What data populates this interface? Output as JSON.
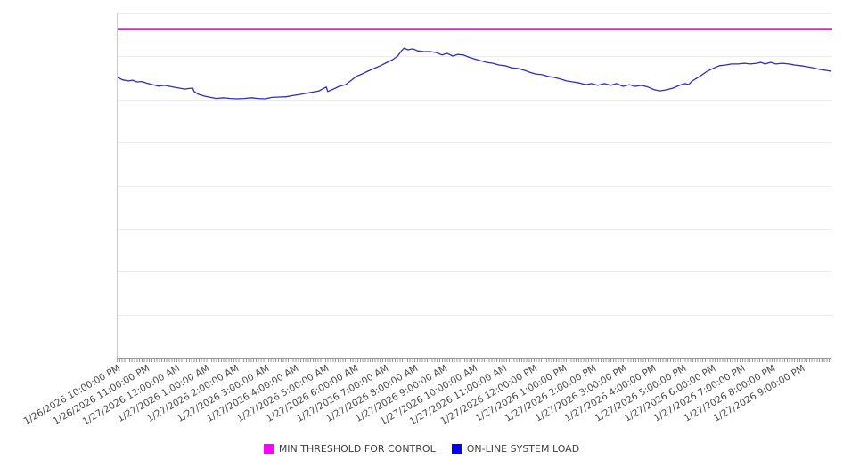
{
  "page": {
    "background": "#ffffff"
  },
  "legend": {
    "items": [
      {
        "label": "MIN THRESHOLD FOR CONTROL",
        "swatch": "#FF00FF"
      },
      {
        "label": "ON-LINE SYSTEM LOAD",
        "swatch": "#0000FF"
      }
    ]
  },
  "chart_data": {
    "type": "line",
    "title": "",
    "xlabel": "",
    "ylabel": "",
    "x_labels": [
      "1/26/2026 10:00:00 PM",
      "1/26/2026 11:00:00 PM",
      "1/27/2026 12:00:00 AM",
      "1/27/2026 1:00:00 AM",
      "1/27/2026 2:00:00 AM",
      "1/27/2026 3:00:00 AM",
      "1/27/2026 4:00:00 AM",
      "1/27/2026 5:00:00 AM",
      "1/27/2026 6:00:00 AM",
      "1/27/2026 7:00:00 AM",
      "1/27/2026 8:00:00 AM",
      "1/27/2026 9:00:00 AM",
      "1/27/2026 10:00:00 AM",
      "1/27/2026 11:00:00 AM",
      "1/27/2026 12:00:00 PM",
      "1/27/2026 1:00:00 PM",
      "1/27/2026 2:00:00 PM",
      "1/27/2026 3:00:00 PM",
      "1/27/2026 4:00:00 PM",
      "1/27/2026 5:00:00 PM",
      "1/27/2026 6:00:00 PM",
      "1/27/2026 7:00:00 PM",
      "1/27/2026 8:00:00 PM",
      "1/27/2026 9:00:00 PM"
    ],
    "x_range_hours": 24,
    "x_minor_tick_interval_minutes": 5,
    "ylim": [
      0,
      100
    ],
    "y_gridline_count": 9,
    "y_tick_labels": [],
    "grid_on": true,
    "grid_color": "#ececec",
    "axis_color": "#999999",
    "plot_border_color": "#cccccc",
    "x_label_color": "#4a4a4a",
    "legend_position": "bottom-center",
    "series": [
      {
        "name": "MIN THRESHOLD FOR CONTROL",
        "type": "horizontal-line",
        "color": "#CC2FCC",
        "value": 95.3
      },
      {
        "name": "ON-LINE SYSTEM LOAD",
        "type": "line",
        "color": "#2D2DBE",
        "points": [
          [
            0,
            81.4
          ],
          [
            0.7,
            80.7
          ],
          [
            1.5,
            80.4
          ],
          [
            2.1,
            80.6
          ],
          [
            2.7,
            80.1
          ],
          [
            3.4,
            80.2
          ],
          [
            4,
            79.8
          ],
          [
            4.9,
            79.3
          ],
          [
            5.7,
            78.9
          ],
          [
            6.6,
            79.1
          ],
          [
            7.5,
            78.7
          ],
          [
            8.4,
            78.4
          ],
          [
            9.4,
            78
          ],
          [
            10,
            78.2
          ],
          [
            10.5,
            78.3
          ],
          [
            10.7,
            77.3
          ],
          [
            11.3,
            76.5
          ],
          [
            12.1,
            76
          ],
          [
            13,
            75.6
          ],
          [
            13.8,
            75.3
          ],
          [
            14.8,
            75.5
          ],
          [
            15.8,
            75.3
          ],
          [
            16.7,
            75.2
          ],
          [
            17.7,
            75.3
          ],
          [
            18.7,
            75.5
          ],
          [
            19.6,
            75.3
          ],
          [
            20.6,
            75.2
          ],
          [
            21.6,
            75.6
          ],
          [
            22.6,
            75.7
          ],
          [
            23.6,
            75.8
          ],
          [
            24.4,
            76.1
          ],
          [
            25.7,
            76.5
          ],
          [
            26.9,
            77
          ],
          [
            28.2,
            77.5
          ],
          [
            28.9,
            78.3
          ],
          [
            29.2,
            78.6
          ],
          [
            29.4,
            77.3
          ],
          [
            30.2,
            78
          ],
          [
            31,
            78.8
          ],
          [
            31.9,
            79.3
          ],
          [
            32.7,
            80.6
          ],
          [
            33.4,
            81.7
          ],
          [
            34.2,
            82.4
          ],
          [
            35,
            83.2
          ],
          [
            35.9,
            84
          ],
          [
            36.8,
            84.8
          ],
          [
            37.7,
            85.8
          ],
          [
            38.5,
            86.6
          ],
          [
            39.2,
            87.6
          ],
          [
            39.7,
            89.1
          ],
          [
            40.1,
            89.9
          ],
          [
            40.6,
            89.4
          ],
          [
            41.3,
            89.7
          ],
          [
            42,
            89.1
          ],
          [
            42.9,
            88.9
          ],
          [
            43.8,
            88.9
          ],
          [
            44.6,
            88.6
          ],
          [
            45.4,
            87.9
          ],
          [
            46.1,
            88.4
          ],
          [
            46.9,
            87.6
          ],
          [
            47.6,
            88.1
          ],
          [
            48.4,
            87.9
          ],
          [
            49.1,
            87.3
          ],
          [
            49.9,
            86.8
          ],
          [
            50.7,
            86.3
          ],
          [
            51.6,
            85.8
          ],
          [
            52.5,
            85.5
          ],
          [
            53.4,
            85
          ],
          [
            54.2,
            84.8
          ],
          [
            55.1,
            84.2
          ],
          [
            56,
            84
          ],
          [
            56.9,
            83.5
          ],
          [
            57.7,
            82.9
          ],
          [
            58.5,
            82.4
          ],
          [
            59.4,
            82.2
          ],
          [
            60.2,
            81.7
          ],
          [
            61.1,
            81.4
          ],
          [
            62,
            80.9
          ],
          [
            62.8,
            80.4
          ],
          [
            63.7,
            80.1
          ],
          [
            64.6,
            79.8
          ],
          [
            65.5,
            79.3
          ],
          [
            66.3,
            79.6
          ],
          [
            67.2,
            79.1
          ],
          [
            68.1,
            79.6
          ],
          [
            69,
            79.1
          ],
          [
            69.8,
            79.6
          ],
          [
            70.7,
            78.8
          ],
          [
            71.6,
            79.3
          ],
          [
            72.4,
            78.8
          ],
          [
            73.3,
            79.1
          ],
          [
            74.2,
            78.6
          ],
          [
            75.1,
            77.8
          ],
          [
            75.9,
            77.5
          ],
          [
            76.8,
            77.8
          ],
          [
            77.7,
            78.3
          ],
          [
            78.6,
            79.1
          ],
          [
            79.4,
            79.6
          ],
          [
            79.9,
            79.3
          ],
          [
            80.4,
            80.4
          ],
          [
            81,
            81.1
          ],
          [
            81.8,
            82.2
          ],
          [
            82.5,
            83.2
          ],
          [
            83.3,
            84
          ],
          [
            84.2,
            84.8
          ],
          [
            85,
            85
          ],
          [
            85.9,
            85.3
          ],
          [
            86.8,
            85.3
          ],
          [
            87.7,
            85.5
          ],
          [
            88.5,
            85.3
          ],
          [
            89.4,
            85.5
          ],
          [
            90,
            85.8
          ],
          [
            90.6,
            85.3
          ],
          [
            91.4,
            85.8
          ],
          [
            92.1,
            85.3
          ],
          [
            93,
            85.5
          ],
          [
            93.9,
            85.3
          ],
          [
            94.8,
            85
          ],
          [
            95.6,
            84.8
          ],
          [
            96.5,
            84.5
          ],
          [
            97.3,
            84.2
          ],
          [
            98.3,
            83.7
          ],
          [
            99,
            83.5
          ],
          [
            99.8,
            83.2
          ]
        ]
      }
    ]
  }
}
